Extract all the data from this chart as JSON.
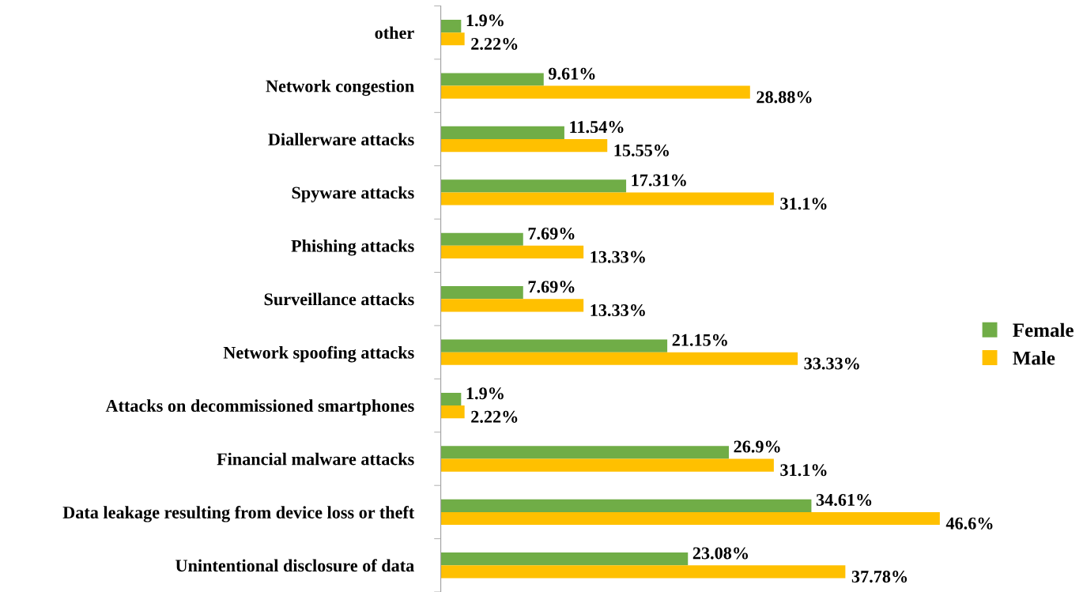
{
  "chart_data": {
    "type": "bar",
    "orientation": "horizontal",
    "legend": "right",
    "grid": false,
    "categories": [
      "other",
      "Network congestion",
      "Diallerware attacks",
      "Spyware attacks",
      "Phishing attacks",
      "Surveillance attacks",
      "Network spoofing attacks",
      "Attacks on decommissioned smartphones",
      "Financial malware attacks",
      "Data leakage resulting from device loss or theft",
      "Unintentional disclosure of data"
    ],
    "series": [
      {
        "name": "Female",
        "color": "#70ad47",
        "values": [
          1.9,
          9.61,
          11.54,
          17.31,
          7.69,
          7.69,
          21.15,
          1.9,
          26.9,
          34.61,
          23.08
        ],
        "value_labels": [
          "1.9%",
          "9.61%",
          "11.54%",
          "17.31%",
          "7.69%",
          "7.69%",
          "21.15%",
          "1.9%",
          "26.9%",
          "34.61%",
          "23.08%"
        ]
      },
      {
        "name": "Male",
        "color": "#ffc000",
        "values": [
          2.22,
          28.88,
          15.55,
          31.1,
          13.33,
          13.33,
          33.33,
          2.22,
          31.1,
          46.6,
          37.78
        ],
        "value_labels": [
          "2.22%",
          "28.88%",
          "15.55%",
          "31.1%",
          "13.33%",
          "13.33%",
          "33.33%",
          "2.22%",
          "31.1%",
          "46.6%",
          "37.78%"
        ]
      }
    ]
  }
}
